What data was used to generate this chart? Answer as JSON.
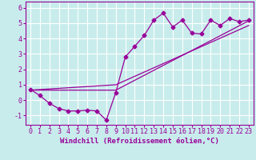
{
  "background_color": "#c8ecec",
  "grid_color": "#ffffff",
  "line_color": "#990099",
  "marker": "D",
  "markersize": 2.5,
  "linewidth": 0.9,
  "xlabel": "Windchill (Refroidissement éolien,°C)",
  "xlabel_fontsize": 6.5,
  "tick_fontsize": 6.0,
  "xlim": [
    -0.5,
    23.5
  ],
  "ylim": [
    -1.6,
    6.4
  ],
  "yticks": [
    -1,
    0,
    1,
    2,
    3,
    4,
    5,
    6
  ],
  "xticks": [
    0,
    1,
    2,
    3,
    4,
    5,
    6,
    7,
    8,
    9,
    10,
    11,
    12,
    13,
    14,
    15,
    16,
    17,
    18,
    19,
    20,
    21,
    22,
    23
  ],
  "series1_x": [
    0,
    1,
    2,
    3,
    4,
    5,
    6,
    7,
    8,
    9,
    10,
    11,
    12,
    13,
    14,
    15,
    16,
    17,
    18,
    19,
    20,
    21,
    22,
    23
  ],
  "series1_y": [
    0.7,
    0.3,
    -0.2,
    -0.55,
    -0.7,
    -0.7,
    -0.65,
    -0.7,
    -1.3,
    0.5,
    2.8,
    3.5,
    4.2,
    5.2,
    5.65,
    4.75,
    5.2,
    4.35,
    4.3,
    5.2,
    4.85,
    5.3,
    5.1,
    5.2
  ],
  "series2_x": [
    0,
    9,
    23
  ],
  "series2_y": [
    0.65,
    0.65,
    5.15
  ],
  "series3_x": [
    0,
    9,
    23
  ],
  "series3_y": [
    0.65,
    1.0,
    4.85
  ]
}
